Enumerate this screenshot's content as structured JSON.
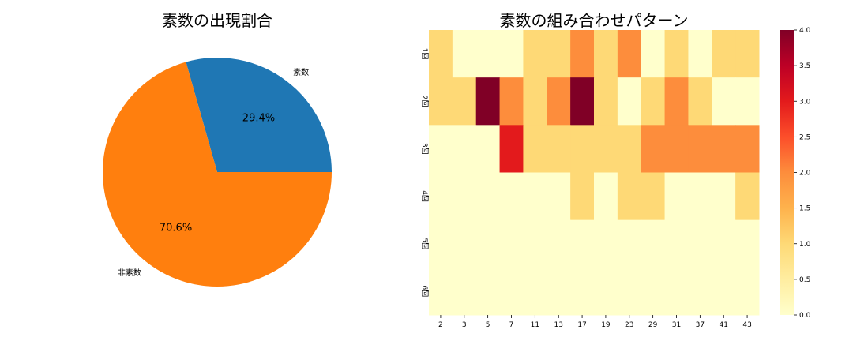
{
  "chart_data": [
    {
      "type": "pie",
      "title": "素数の出現割合",
      "slices": [
        {
          "label": "素数",
          "value": 29.4,
          "pct_label": "29.4%",
          "color": "#1f77b4"
        },
        {
          "label": "非素数",
          "value": 70.6,
          "pct_label": "70.6%",
          "color": "#ff7f0e"
        }
      ]
    },
    {
      "type": "heatmap",
      "title": "素数の組み合わせパターン",
      "x_categories": [
        "2",
        "3",
        "5",
        "7",
        "11",
        "13",
        "17",
        "19",
        "23",
        "29",
        "31",
        "37",
        "41",
        "43"
      ],
      "y_categories": [
        "1回",
        "2回",
        "3回",
        "4回",
        "5回",
        "6回"
      ],
      "values": [
        [
          1,
          0,
          0,
          0,
          1,
          1,
          2,
          1,
          2,
          0,
          1,
          0,
          1,
          1
        ],
        [
          1,
          1,
          4,
          2,
          1,
          2,
          4,
          1,
          0,
          1,
          2,
          1,
          0,
          0
        ],
        [
          0,
          0,
          0,
          3,
          1,
          1,
          1,
          1,
          1,
          2,
          2,
          2,
          2,
          2
        ],
        [
          0,
          0,
          0,
          0,
          0,
          0,
          1,
          0,
          1,
          1,
          0,
          0,
          0,
          1
        ],
        [
          0,
          0,
          0,
          0,
          0,
          0,
          0,
          0,
          0,
          0,
          0,
          0,
          0,
          0
        ],
        [
          0,
          0,
          0,
          0,
          0,
          0,
          0,
          0,
          0,
          0,
          0,
          0,
          0,
          0
        ]
      ],
      "colormap": "YlOrRd",
      "colorbar": {
        "min": 0.0,
        "max": 4.0,
        "ticks": [
          "0.0",
          "0.5",
          "1.0",
          "1.5",
          "2.0",
          "2.5",
          "3.0",
          "3.5",
          "4.0"
        ]
      }
    }
  ]
}
